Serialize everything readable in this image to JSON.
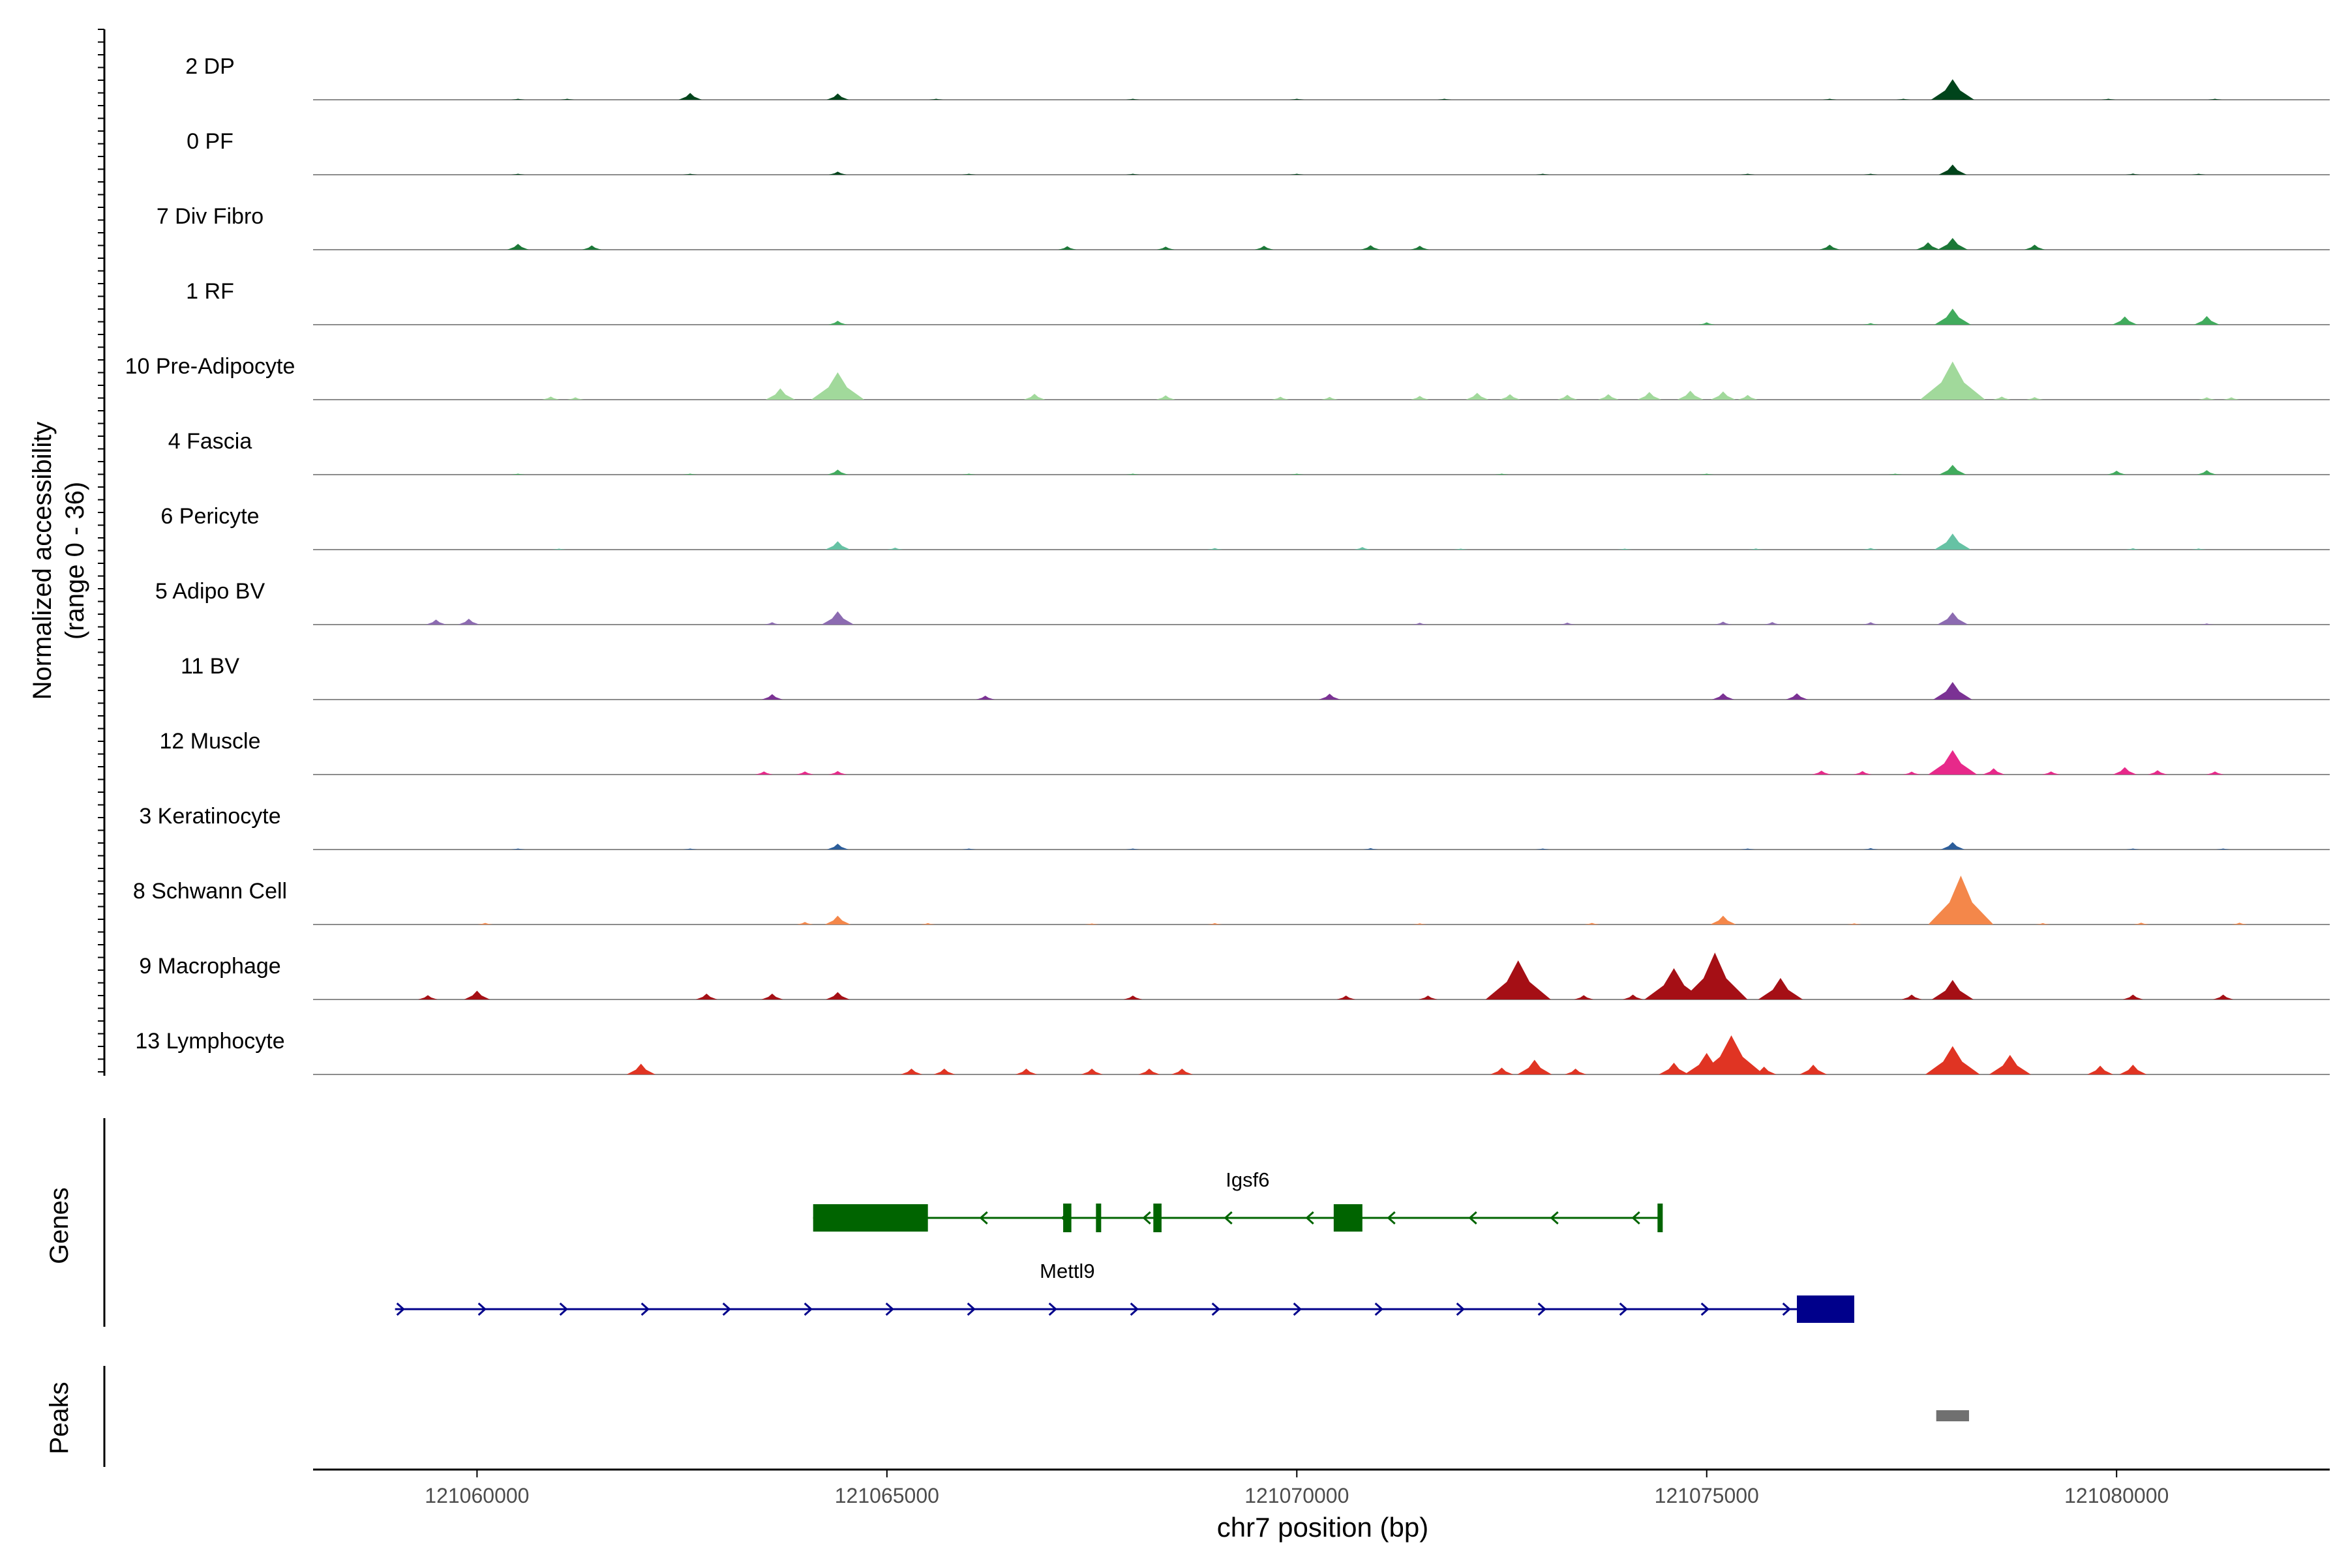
{
  "chart_data": {
    "type": "area",
    "title": "",
    "ylabel_line1": "Normalized accessibility",
    "ylabel_line2": "(range 0 - 36)",
    "ylim": [
      0,
      36
    ],
    "xlabel": "chr7 position (bp)",
    "xlim": [
      121058000,
      121082600
    ],
    "x_ticks": [
      121060000,
      121065000,
      121070000,
      121075000,
      121080000
    ],
    "x_tick_labels": [
      "121060000",
      "121065000",
      "121070000",
      "121075000",
      "121080000"
    ],
    "grid": false,
    "legend": "none",
    "track_labels": {
      "genes": "Genes",
      "peaks": "Peaks"
    },
    "series": [
      {
        "name": "2 DP",
        "color": "#00441b",
        "peaks": [
          [
            121060500,
            0.2
          ],
          [
            121061100,
            0.2
          ],
          [
            121062600,
            3.5
          ],
          [
            121064400,
            3.2
          ],
          [
            121065600,
            0.3
          ],
          [
            121068000,
            0.3
          ],
          [
            121070000,
            0.5
          ],
          [
            121071800,
            0.3
          ],
          [
            121076500,
            0.3
          ],
          [
            121077400,
            0.4
          ],
          [
            121078000,
            10.5
          ],
          [
            121079900,
            0.4
          ],
          [
            121081200,
            0.3
          ]
        ]
      },
      {
        "name": "0 PF",
        "color": "#00441b",
        "peaks": [
          [
            121060500,
            0.2
          ],
          [
            121062600,
            0.5
          ],
          [
            121064400,
            1.6
          ],
          [
            121066000,
            0.3
          ],
          [
            121068000,
            0.3
          ],
          [
            121070000,
            0.3
          ],
          [
            121073000,
            0.3
          ],
          [
            121075500,
            0.5
          ],
          [
            121077000,
            0.4
          ],
          [
            121078000,
            5.2
          ],
          [
            121080200,
            0.6
          ],
          [
            121081000,
            0.3
          ]
        ]
      },
      {
        "name": "7 Div Fibro",
        "color": "#1b7837",
        "peaks": [
          [
            121060500,
            3.0
          ],
          [
            121061400,
            2.2
          ],
          [
            121067200,
            1.8
          ],
          [
            121068400,
            1.6
          ],
          [
            121069600,
            2.0
          ],
          [
            121070900,
            2.3
          ],
          [
            121071500,
            2.0
          ],
          [
            121076500,
            2.6
          ],
          [
            121077700,
            3.8
          ],
          [
            121078000,
            6.0
          ],
          [
            121079000,
            2.6
          ]
        ]
      },
      {
        "name": "1 RF",
        "color": "#41ab5d",
        "peaks": [
          [
            121064400,
            2.0
          ],
          [
            121075000,
            1.2
          ],
          [
            121077000,
            0.8
          ],
          [
            121078000,
            8.2
          ],
          [
            121080100,
            4.2
          ],
          [
            121081100,
            4.4
          ]
        ]
      },
      {
        "name": "10 Pre-Adipocyte",
        "color": "#a1d99b",
        "peaks": [
          [
            121060900,
            1.6
          ],
          [
            121061200,
            1.2
          ],
          [
            121063700,
            5.8
          ],
          [
            121064400,
            14.0
          ],
          [
            121066800,
            3.0
          ],
          [
            121068400,
            2.2
          ],
          [
            121069800,
            1.5
          ],
          [
            121070400,
            1.4
          ],
          [
            121071500,
            1.9
          ],
          [
            121072200,
            3.5
          ],
          [
            121072600,
            2.8
          ],
          [
            121073300,
            2.5
          ],
          [
            121073800,
            2.8
          ],
          [
            121074300,
            3.9
          ],
          [
            121074800,
            4.6
          ],
          [
            121075200,
            4.2
          ],
          [
            121075500,
            2.4
          ],
          [
            121078000,
            19.5
          ],
          [
            121078600,
            1.6
          ],
          [
            121079000,
            1.3
          ],
          [
            121081100,
            1.2
          ],
          [
            121081400,
            1.2
          ]
        ]
      },
      {
        "name": "4 Fascia",
        "color": "#41ab5d",
        "peaks": [
          [
            121060500,
            0.4
          ],
          [
            121062600,
            0.5
          ],
          [
            121064400,
            2.6
          ],
          [
            121066000,
            0.3
          ],
          [
            121068000,
            0.3
          ],
          [
            121070000,
            0.3
          ],
          [
            121072500,
            0.3
          ],
          [
            121075000,
            0.5
          ],
          [
            121077300,
            0.5
          ],
          [
            121078000,
            5.0
          ],
          [
            121080000,
            2.0
          ],
          [
            121081100,
            2.3
          ]
        ]
      },
      {
        "name": "6 Pericyte",
        "color": "#66c2a4",
        "peaks": [
          [
            121061000,
            0.3
          ],
          [
            121064400,
            4.3
          ],
          [
            121065100,
            1.0
          ],
          [
            121069000,
            0.8
          ],
          [
            121070800,
            1.3
          ],
          [
            121072000,
            0.5
          ],
          [
            121074000,
            0.5
          ],
          [
            121075600,
            0.6
          ],
          [
            121077000,
            0.8
          ],
          [
            121078000,
            8.2
          ],
          [
            121080200,
            0.7
          ],
          [
            121081000,
            0.6
          ]
        ]
      },
      {
        "name": "5 Adipo BV",
        "color": "#8c6bb1",
        "peaks": [
          [
            121059500,
            2.6
          ],
          [
            121059900,
            3.0
          ],
          [
            121063600,
            1.2
          ],
          [
            121064400,
            6.8
          ],
          [
            121071500,
            0.9
          ],
          [
            121073300,
            1.0
          ],
          [
            121075200,
            1.5
          ],
          [
            121075800,
            1.3
          ],
          [
            121077000,
            1.2
          ],
          [
            121078000,
            6.3
          ],
          [
            121081100,
            0.6
          ]
        ]
      },
      {
        "name": "11 BV",
        "color": "#7b3294",
        "peaks": [
          [
            121063600,
            2.8
          ],
          [
            121066200,
            2.0
          ],
          [
            121070400,
            3.0
          ],
          [
            121075200,
            3.2
          ],
          [
            121076100,
            3.2
          ],
          [
            121078000,
            9.0
          ]
        ]
      },
      {
        "name": "12 Muscle",
        "color": "#e7298a",
        "peaks": [
          [
            121063500,
            1.6
          ],
          [
            121064000,
            1.6
          ],
          [
            121064400,
            1.8
          ],
          [
            121076400,
            2.0
          ],
          [
            121076900,
            1.8
          ],
          [
            121077500,
            1.5
          ],
          [
            121078000,
            12.5
          ],
          [
            121078500,
            3.2
          ],
          [
            121079200,
            1.6
          ],
          [
            121080100,
            3.8
          ],
          [
            121080500,
            2.2
          ],
          [
            121081200,
            1.6
          ]
        ]
      },
      {
        "name": "3 Keratinocyte",
        "color": "#2b5d9a",
        "peaks": [
          [
            121060500,
            0.4
          ],
          [
            121062600,
            0.4
          ],
          [
            121064400,
            3.0
          ],
          [
            121066000,
            0.3
          ],
          [
            121068000,
            0.4
          ],
          [
            121070900,
            0.7
          ],
          [
            121073000,
            0.4
          ],
          [
            121075500,
            0.5
          ],
          [
            121077000,
            0.7
          ],
          [
            121078000,
            3.8
          ],
          [
            121080200,
            0.4
          ],
          [
            121081300,
            0.4
          ]
        ]
      },
      {
        "name": "8 Schwann Cell",
        "color": "#f4874a",
        "peaks": [
          [
            121060100,
            0.8
          ],
          [
            121064000,
            1.3
          ],
          [
            121064400,
            4.5
          ],
          [
            121065500,
            0.7
          ],
          [
            121067500,
            0.5
          ],
          [
            121069000,
            0.7
          ],
          [
            121071500,
            0.6
          ],
          [
            121073600,
            0.8
          ],
          [
            121075200,
            4.5
          ],
          [
            121076800,
            0.6
          ],
          [
            121078100,
            25.0
          ],
          [
            121079100,
            0.7
          ],
          [
            121080300,
            0.9
          ],
          [
            121081500,
            0.9
          ]
        ]
      },
      {
        "name": "9 Macrophage",
        "color": "#a50f15",
        "peaks": [
          [
            121059400,
            2.2
          ],
          [
            121060000,
            4.5
          ],
          [
            121062800,
            3.0
          ],
          [
            121063600,
            3.0
          ],
          [
            121064400,
            3.8
          ],
          [
            121068000,
            2.0
          ],
          [
            121070600,
            2.0
          ],
          [
            121071600,
            2.0
          ],
          [
            121072700,
            20.0
          ],
          [
            121073500,
            2.2
          ],
          [
            121074100,
            2.5
          ],
          [
            121074600,
            16.0
          ],
          [
            121075100,
            24.0
          ],
          [
            121075900,
            11.0
          ],
          [
            121077500,
            2.5
          ],
          [
            121078000,
            10.0
          ],
          [
            121080200,
            2.5
          ],
          [
            121081300,
            2.5
          ]
        ]
      },
      {
        "name": "13 Lymphocyte",
        "color": "#e03423",
        "peaks": [
          [
            121062000,
            5.5
          ],
          [
            121065300,
            3.0
          ],
          [
            121065700,
            3.0
          ],
          [
            121066700,
            3.0
          ],
          [
            121067500,
            3.0
          ],
          [
            121068200,
            3.0
          ],
          [
            121068600,
            3.0
          ],
          [
            121072500,
            3.5
          ],
          [
            121072900,
            7.5
          ],
          [
            121073400,
            3.0
          ],
          [
            121074600,
            6.0
          ],
          [
            121075000,
            11.0
          ],
          [
            121075300,
            20.0
          ],
          [
            121075700,
            4.0
          ],
          [
            121076300,
            5.0
          ],
          [
            121078000,
            14.5
          ],
          [
            121078700,
            10.0
          ],
          [
            121079800,
            4.5
          ],
          [
            121080200,
            5.0
          ]
        ]
      }
    ],
    "genes": [
      {
        "name": "Igsf6",
        "strand": "-",
        "color": "#006400",
        "start": 121064100,
        "end": 121074450,
        "exons": [
          [
            121064100,
            121065500
          ],
          [
            121067150,
            121067250
          ],
          [
            121067550,
            121067600
          ],
          [
            121068250,
            121068350
          ],
          [
            121070450,
            121070800
          ],
          [
            121074400,
            121074450
          ]
        ],
        "label_x": 121069400
      },
      {
        "name": "Mettl9",
        "strand": "+",
        "color": "#00008b",
        "start": 121059000,
        "end": 121076800,
        "exons": [
          [
            121076100,
            121076800
          ]
        ],
        "label_x": 121067200
      }
    ],
    "peak_regions": [
      [
        121077800,
        121078200
      ]
    ]
  }
}
